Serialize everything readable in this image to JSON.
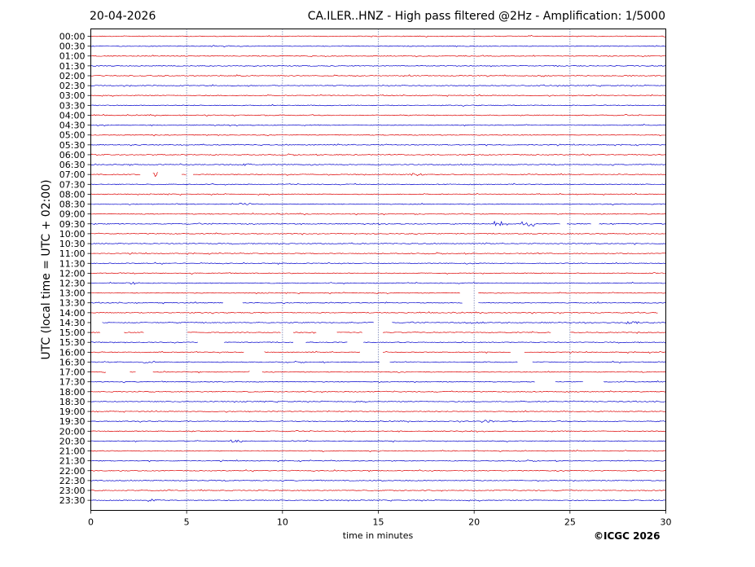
{
  "header": {
    "date": "20-04-2026",
    "title": "CA.ILER..HNZ - High pass filtered @2Hz - Amplification: 1/5000"
  },
  "credit": "©ICGC 2026",
  "chart_data": {
    "type": "line",
    "title": "CA.ILER..HNZ - High pass filtered @2Hz - Amplification: 1/5000",
    "xlabel": "time in minutes",
    "ylabel": "UTC (local time = UTC + 02:00)",
    "xlim": [
      0,
      30
    ],
    "xticks": [
      "0",
      "5",
      "10",
      "15",
      "20",
      "25",
      "30"
    ],
    "yticks": [
      "00:00",
      "00:30",
      "01:00",
      "01:30",
      "02:00",
      "02:30",
      "03:00",
      "03:30",
      "04:00",
      "04:30",
      "05:00",
      "05:30",
      "06:00",
      "06:30",
      "07:00",
      "07:30",
      "08:00",
      "08:30",
      "09:00",
      "09:30",
      "10:00",
      "10:30",
      "11:00",
      "11:30",
      "12:00",
      "12:30",
      "13:00",
      "13:30",
      "14:00",
      "14:30",
      "15:00",
      "15:30",
      "16:00",
      "16:30",
      "17:00",
      "17:30",
      "18:00",
      "18:30",
      "19:00",
      "19:30",
      "20:00",
      "20:30",
      "21:00",
      "21:30",
      "22:00",
      "22:30",
      "23:00",
      "23:30"
    ],
    "vertical_gridlines_at": [
      5,
      10,
      15,
      20,
      25
    ],
    "trace_colors": [
      "#dd0000",
      "#0000cc"
    ],
    "gaps": [
      {
        "row": "07:00",
        "ranges": [
          [
            2.6,
            3.2
          ],
          [
            3.5,
            4.7
          ],
          [
            5.0,
            5.3
          ]
        ]
      },
      {
        "row": "09:30",
        "ranges": [
          [
            24.5,
            24.8
          ],
          [
            26.1,
            26.5
          ]
        ]
      },
      {
        "row": "13:00",
        "ranges": [
          [
            19.3,
            20.2
          ]
        ]
      },
      {
        "row": "13:30",
        "ranges": [
          [
            6.9,
            7.9
          ],
          [
            19.4,
            20.2
          ]
        ]
      },
      {
        "row": "14:00",
        "ranges": [
          [
            29.6,
            30.0
          ]
        ]
      },
      {
        "row": "14:30",
        "ranges": [
          [
            0.0,
            0.6
          ],
          [
            14.8,
            15.7
          ]
        ]
      },
      {
        "row": "15:00",
        "ranges": [
          [
            0.5,
            1.7
          ],
          [
            2.8,
            5.0
          ],
          [
            9.9,
            10.5
          ],
          [
            11.8,
            12.8
          ],
          [
            14.2,
            15.2
          ],
          [
            24.0,
            25.0
          ]
        ]
      },
      {
        "row": "15:30",
        "ranges": [
          [
            5.6,
            6.9
          ],
          [
            10.6,
            11.2
          ],
          [
            13.4,
            14.2
          ]
        ]
      },
      {
        "row": "16:00",
        "ranges": [
          [
            8.0,
            9.0
          ],
          [
            14.1,
            15.2
          ],
          [
            21.9,
            22.6
          ]
        ]
      },
      {
        "row": "16:30",
        "ranges": [
          [
            15.1,
            15.6
          ],
          [
            22.3,
            23.0
          ]
        ]
      },
      {
        "row": "17:00",
        "ranges": [
          [
            0.8,
            2.0
          ],
          [
            2.4,
            3.2
          ],
          [
            8.3,
            8.9
          ]
        ]
      },
      {
        "row": "17:30",
        "ranges": [
          [
            23.2,
            24.2
          ],
          [
            25.7,
            26.7
          ]
        ]
      }
    ],
    "bursts": [
      {
        "row": "06:30",
        "x": 8.0,
        "amp": 3
      },
      {
        "row": "07:00",
        "x": 3.3,
        "amp": 6
      },
      {
        "row": "07:00",
        "x": 17.0,
        "amp": 3
      },
      {
        "row": "08:30",
        "x": 8.0,
        "amp": 3
      },
      {
        "row": "09:30",
        "x": 21.4,
        "amp": 6
      },
      {
        "row": "09:30",
        "x": 22.8,
        "amp": 6
      },
      {
        "row": "12:30",
        "x": 2.2,
        "amp": 3
      },
      {
        "row": "14:30",
        "x": 20.2,
        "amp": 3
      },
      {
        "row": "14:30",
        "x": 28.3,
        "amp": 3
      },
      {
        "row": "16:30",
        "x": 3.0,
        "amp": 3
      },
      {
        "row": "19:30",
        "x": 20.7,
        "amp": 3
      },
      {
        "row": "20:30",
        "x": 7.6,
        "amp": 3
      },
      {
        "row": "23:30",
        "x": 3.3,
        "amp": 3
      }
    ]
  }
}
